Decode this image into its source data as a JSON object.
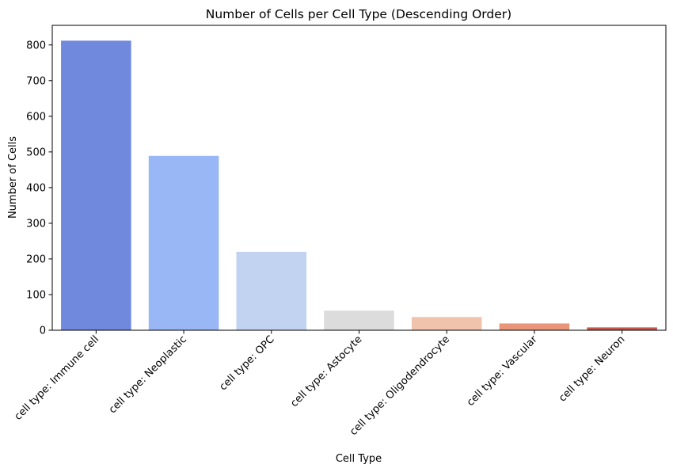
{
  "chart_data": {
    "type": "bar",
    "title": "Number of Cells per Cell Type (Descending Order)",
    "xlabel": "Cell Type",
    "ylabel": "Number of Cells",
    "categories": [
      "cell type: Immune cell",
      "cell type: Neoplastic",
      "cell type: OPC",
      "cell type: Astocyte",
      "cell type: Oligodendrocyte",
      "cell type: Vascular",
      "cell type: Neuron"
    ],
    "values": [
      812,
      489,
      220,
      55,
      37,
      19,
      8
    ],
    "colors": [
      "#7089dd",
      "#9ab7f5",
      "#c2d3f1",
      "#dcdcdc",
      "#f0c3ac",
      "#e8957a",
      "#c4584c"
    ],
    "ylim": [
      0,
      855
    ],
    "yticks": [
      0,
      100,
      200,
      300,
      400,
      500,
      600,
      700,
      800
    ],
    "grid": false,
    "legend": "none"
  }
}
